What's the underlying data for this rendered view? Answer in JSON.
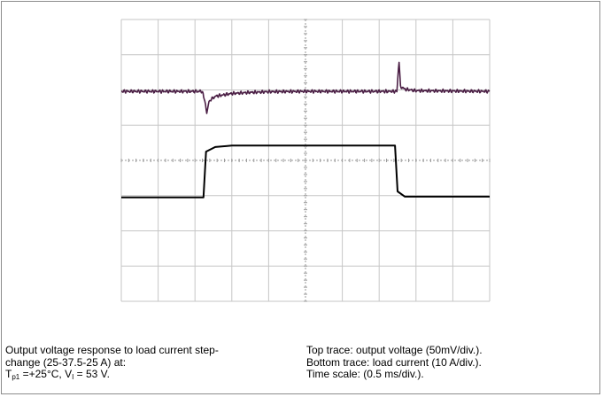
{
  "chart_data": {
    "type": "line",
    "grid": true,
    "divisions": {
      "x": 10,
      "y": 8
    },
    "x_units_per_div": "0.5 ms/div.",
    "series": [
      {
        "color": "#4b1f45",
        "values_div": {
          "t": [
            0,
            1.3,
            2.19,
            2.25,
            2.32,
            2.38,
            2.55,
            3.0,
            3.5,
            4.0,
            5.0,
            6.0,
            6.9,
            7.48,
            7.54,
            7.58,
            7.7,
            8.0,
            10.0
          ],
          "v": [
            5.96,
            5.96,
            5.96,
            5.78,
            5.33,
            5.68,
            5.82,
            5.9,
            5.93,
            5.95,
            5.96,
            5.96,
            5.96,
            5.96,
            6.8,
            6.1,
            6.02,
            5.98,
            5.96
          ]
        }
      },
      {
        "color": "#000000",
        "values_div": {
          "t": [
            0,
            2.23,
            2.3,
            2.55,
            3.0,
            7.43,
            7.5,
            7.7,
            10.0
          ],
          "v": [
            2.95,
            2.95,
            4.25,
            4.38,
            4.42,
            4.42,
            3.12,
            2.97,
            2.97
          ]
        }
      }
    ]
  },
  "caption": {
    "left_line1": "Output voltage response to load current step-",
    "left_line2": "change (25-37.5-25 A) at:",
    "left_line3_T": "T",
    "left_line3_Tsub": "p1",
    "left_line3_mid": " =+25°C, V",
    "left_line3_Vsub": "I",
    "left_line3_end": " = 53 V.",
    "right_line1": "Top trace: output voltage (50mV/div.).",
    "right_line2": "Bottom trace: load current (10 A/div.).",
    "right_line3": "Time scale: (0.5 ms/div.)."
  }
}
